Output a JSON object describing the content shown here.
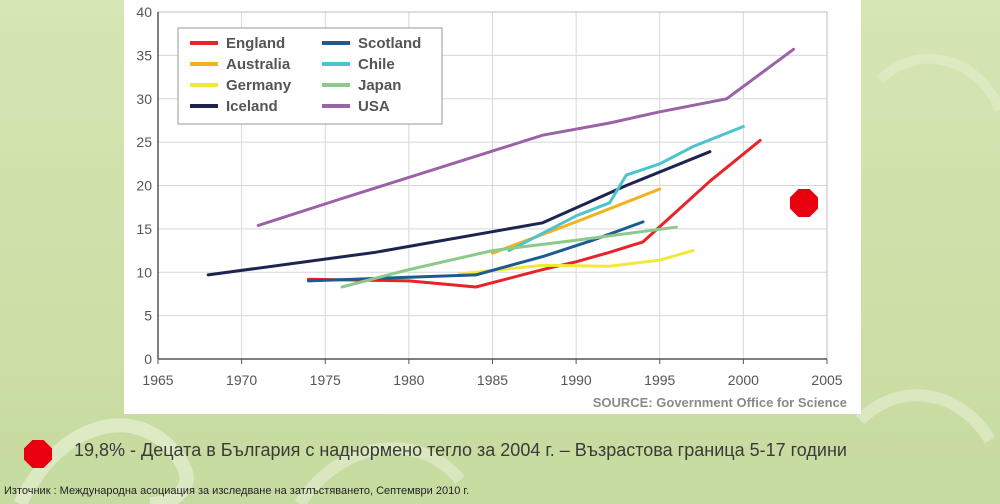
{
  "chart_data": {
    "type": "line",
    "xlim": [
      1965,
      2005
    ],
    "ylim": [
      0,
      40
    ],
    "x_ticks": [
      "1965",
      "1970",
      "1975",
      "1980",
      "1985",
      "1990",
      "1995",
      "2000",
      "2005"
    ],
    "y_ticks": [
      "0",
      "5",
      "10",
      "15",
      "20",
      "25",
      "30",
      "35",
      "40"
    ],
    "grid": true,
    "legend_position": "top-left",
    "series": [
      {
        "name": "England",
        "color": "#e8232a",
        "points": [
          [
            1974,
            9.2
          ],
          [
            1980,
            9.0
          ],
          [
            1984,
            8.3
          ],
          [
            1988,
            10.3
          ],
          [
            1990,
            11.2
          ],
          [
            1992,
            12.3
          ],
          [
            1994,
            13.5
          ],
          [
            1996,
            17.0
          ],
          [
            1998,
            20.5
          ],
          [
            2001,
            25.2
          ]
        ]
      },
      {
        "name": "Australia",
        "color": "#f5b01e",
        "points": [
          [
            1985,
            12.2
          ],
          [
            1990,
            15.8
          ],
          [
            1995,
            19.6
          ]
        ]
      },
      {
        "name": "Germany",
        "color": "#f2e83a",
        "points": [
          [
            1983,
            9.8
          ],
          [
            1988,
            10.8
          ],
          [
            1992,
            10.7
          ],
          [
            1995,
            11.4
          ],
          [
            1997,
            12.5
          ]
        ]
      },
      {
        "name": "Iceland",
        "color": "#1d2450",
        "points": [
          [
            1968,
            9.7
          ],
          [
            1978,
            12.3
          ],
          [
            1988,
            15.7
          ],
          [
            1993,
            20.0
          ],
          [
            1998,
            23.9
          ]
        ]
      },
      {
        "name": "Scotland",
        "color": "#1f5a92",
        "points": [
          [
            1974,
            9.0
          ],
          [
            1984,
            9.7
          ],
          [
            1988,
            11.8
          ],
          [
            1991,
            13.7
          ],
          [
            1994,
            15.8
          ]
        ]
      },
      {
        "name": "Chile",
        "color": "#4cc4cd",
        "points": [
          [
            1986,
            12.5
          ],
          [
            1990,
            16.5
          ],
          [
            1992,
            18.0
          ],
          [
            1993,
            21.2
          ],
          [
            1995,
            22.5
          ],
          [
            1997,
            24.5
          ],
          [
            2000,
            26.8
          ]
        ]
      },
      {
        "name": "Japan",
        "color": "#8cca8c",
        "points": [
          [
            1976,
            8.3
          ],
          [
            1980,
            10.3
          ],
          [
            1985,
            12.5
          ],
          [
            1990,
            13.7
          ],
          [
            1996,
            15.2
          ]
        ]
      },
      {
        "name": "USA",
        "color": "#9b62a8",
        "points": [
          [
            1971,
            15.4
          ],
          [
            1976,
            18.5
          ],
          [
            1988,
            25.8
          ],
          [
            1992,
            27.2
          ],
          [
            1995,
            28.5
          ],
          [
            1999,
            30.0
          ],
          [
            2003,
            35.7
          ]
        ]
      }
    ]
  },
  "source": "SOURCE: Government Office for Science",
  "caption": "19,8% - Децата в България с наднормено тегло за 2004 г. – Възрастова граница 5-17 години",
  "footnote": "Източник : Международна асоциация за изследване на затлъстяването, Септември 2010 г.",
  "marker_color": "#e8000f"
}
